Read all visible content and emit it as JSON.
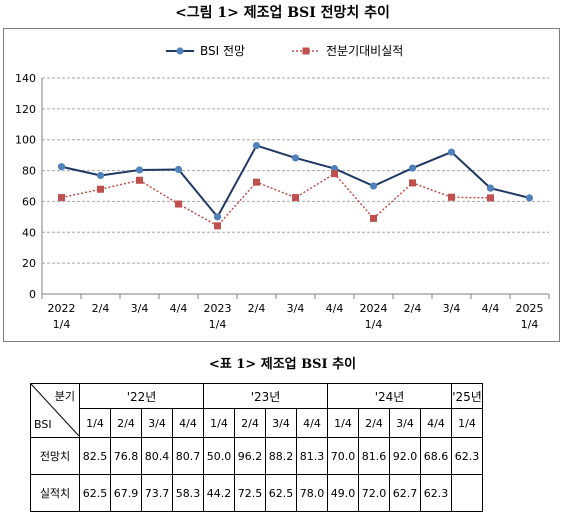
{
  "figure_title": "<그림 1> 제조업 BSI 전망치 추이",
  "table_title": "<표 1> 제조업 BSI 추이",
  "colors": {
    "outlook": "#1f3864",
    "outlook_marker": "#4f81bd",
    "actual": "#c0504d",
    "grid": "#a6a6a6"
  },
  "chart_data": {
    "type": "line",
    "title": "",
    "xlabel": "",
    "ylabel": "",
    "ylim": [
      0,
      140
    ],
    "yticks": [
      0,
      20,
      40,
      60,
      80,
      100,
      120,
      140
    ],
    "grid": true,
    "legend": "top",
    "categories": [
      [
        "2022",
        "1/4"
      ],
      [
        "2/4"
      ],
      [
        "3/4"
      ],
      [
        "4/4"
      ],
      [
        "2023",
        "1/4"
      ],
      [
        "2/4"
      ],
      [
        "3/4"
      ],
      [
        "4/4"
      ],
      [
        "2024",
        "1/4"
      ],
      [
        "2/4"
      ],
      [
        "3/4"
      ],
      [
        "4/4"
      ],
      [
        "2025",
        "1/4"
      ]
    ],
    "series": [
      {
        "name": "BSI 전망",
        "values": [
          82.5,
          76.8,
          80.4,
          80.7,
          50.0,
          96.2,
          88.2,
          81.3,
          70.0,
          81.6,
          92.0,
          68.6,
          62.3
        ]
      },
      {
        "name": "전분기대비실적",
        "values": [
          62.5,
          67.9,
          73.7,
          58.3,
          44.2,
          72.5,
          62.5,
          78.0,
          49.0,
          72.0,
          62.7,
          62.3,
          null
        ]
      }
    ]
  },
  "table": {
    "corner_top": "분기",
    "corner_bottom": "BSI",
    "years": [
      {
        "label": "'22년",
        "span": 4
      },
      {
        "label": "'23년",
        "span": 4
      },
      {
        "label": "'24년",
        "span": 4
      },
      {
        "label": "'25년",
        "span": 1
      }
    ],
    "quarters": [
      "1/4",
      "2/4",
      "3/4",
      "4/4",
      "1/4",
      "2/4",
      "3/4",
      "4/4",
      "1/4",
      "2/4",
      "3/4",
      "4/4",
      "1/4"
    ],
    "rows": [
      {
        "label": "전망치",
        "values": [
          "82.5",
          "76.8",
          "80.4",
          "80.7",
          "50.0",
          "96.2",
          "88.2",
          "81.3",
          "70.0",
          "81.6",
          "92.0",
          "68.6",
          "62.3"
        ]
      },
      {
        "label": "실적치",
        "values": [
          "62.5",
          "67.9",
          "73.7",
          "58.3",
          "44.2",
          "72.5",
          "62.5",
          "78.0",
          "49.0",
          "72.0",
          "62.7",
          "62.3",
          ""
        ]
      }
    ]
  }
}
